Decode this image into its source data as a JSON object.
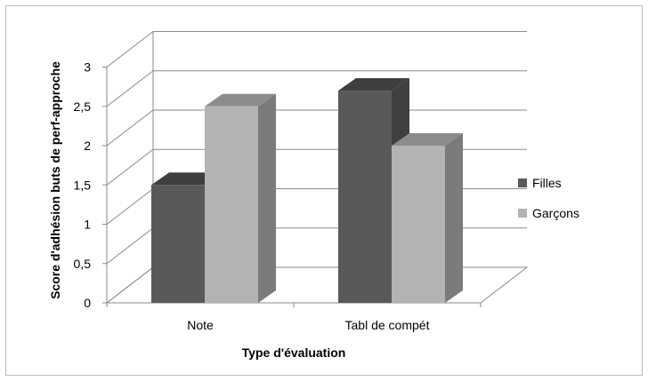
{
  "chart_data": {
    "type": "bar",
    "variant": "3d-clustered-column",
    "title": "",
    "xlabel": "Type d'évaluation",
    "ylabel": "Score d'adhésion buts de perf-approche",
    "categories": [
      "Note",
      "Tabl de compét"
    ],
    "series": [
      {
        "name": "Filles",
        "values": [
          1.5,
          2.7
        ],
        "color": "#595959",
        "top_color": "#3f3f3f",
        "side_color": "#404040"
      },
      {
        "name": "Garçons",
        "values": [
          2.5,
          2.0
        ],
        "color": "#b3b3b3",
        "top_color": "#8c8c8c",
        "side_color": "#7b7b7b"
      }
    ],
    "ylim": [
      0,
      3
    ],
    "yticks": [
      "0",
      "0,5",
      "1",
      "1,5",
      "2",
      "2,5",
      "3"
    ],
    "grid": true,
    "legend_position": "right"
  }
}
